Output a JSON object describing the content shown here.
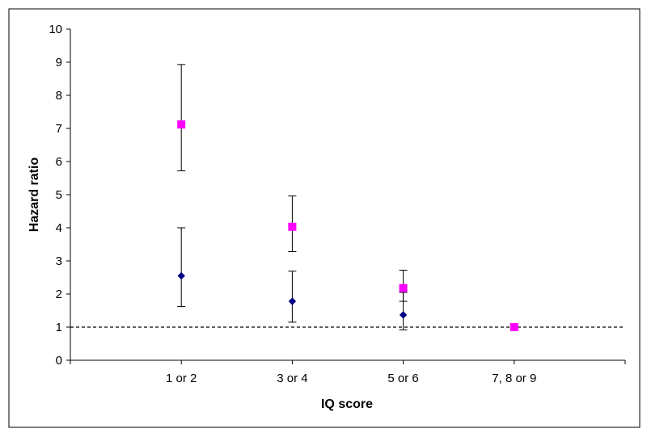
{
  "chart_data": {
    "type": "scatter",
    "xlabel": "IQ score",
    "ylabel": "Hazard ratio",
    "categories": [
      "1 or 2",
      "3 or 4",
      "5 or 6",
      "7, 8 or 9"
    ],
    "ylim": [
      0,
      10
    ],
    "yticks": [
      "0",
      "1",
      "2",
      "3",
      "4",
      "5",
      "6",
      "7",
      "8",
      "9",
      "10"
    ],
    "reference_line": {
      "y": 1,
      "style": "dashed"
    },
    "grid": false,
    "legend": "none",
    "series": [
      {
        "marker": "diamond",
        "color": "#000080",
        "values": [
          2.55,
          1.78,
          1.37,
          1.0
        ],
        "ci_low": [
          1.62,
          1.15,
          0.92,
          null
        ],
        "ci_high": [
          4.0,
          2.69,
          2.05,
          null
        ]
      },
      {
        "marker": "square",
        "color": "#ff00ff",
        "values": [
          7.12,
          4.03,
          2.18,
          1.0
        ],
        "ci_low": [
          5.72,
          3.28,
          1.78,
          null
        ],
        "ci_high": [
          8.93,
          4.96,
          2.72,
          null
        ]
      }
    ]
  }
}
